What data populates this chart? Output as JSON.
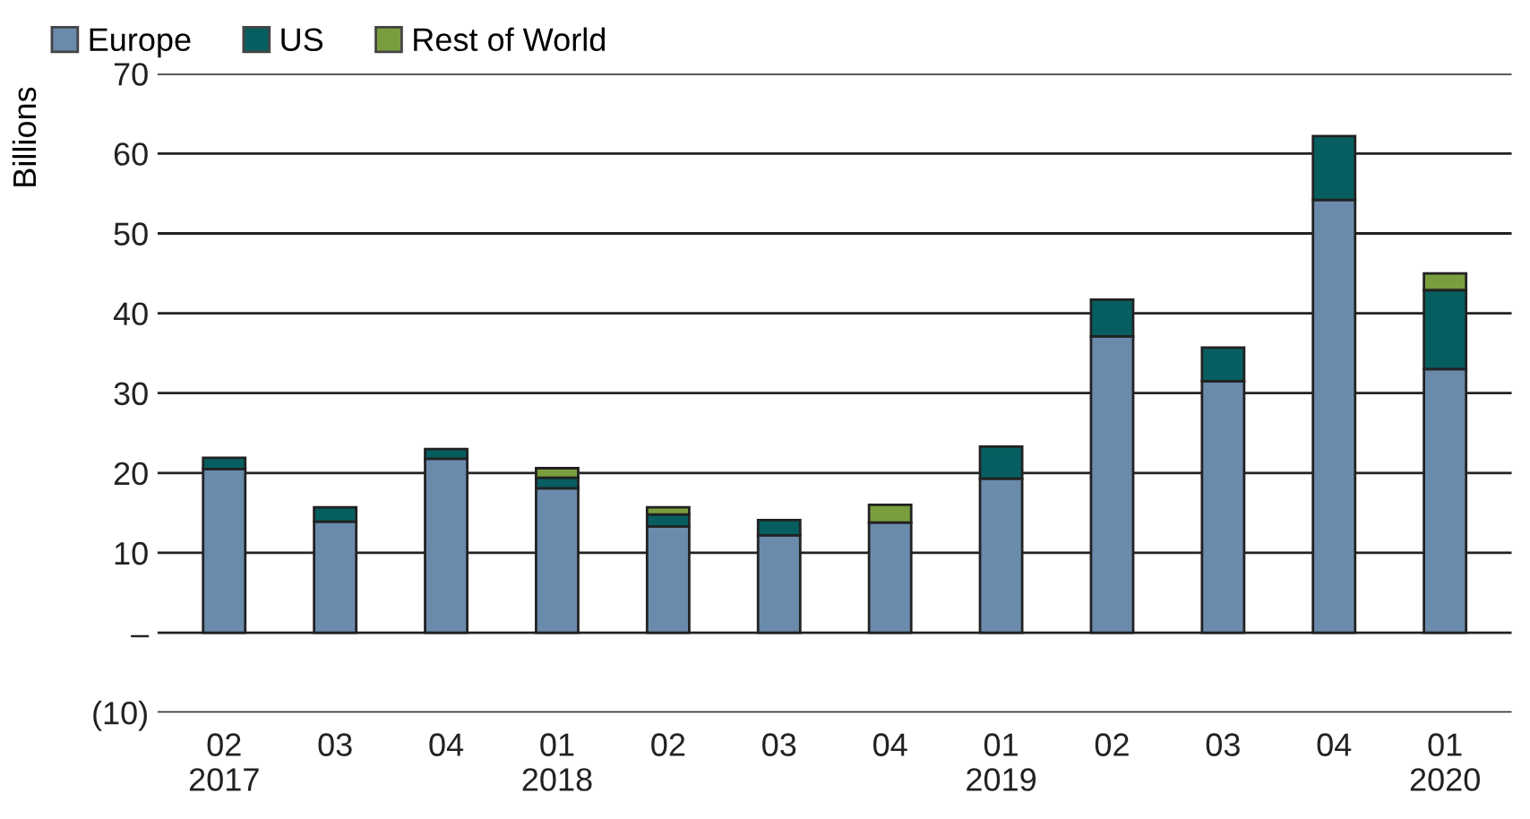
{
  "chart_data": {
    "type": "bar",
    "stacked": true,
    "ylabel": "Billions",
    "categories": [
      "02\n2017",
      "03",
      "04",
      "01\n2018",
      "02",
      "03",
      "04",
      "01\n2019",
      "02",
      "03",
      "04",
      "01\n2020"
    ],
    "series": [
      {
        "name": "Europe",
        "color": "#6a8bab",
        "values": [
          20.5,
          13.9,
          21.8,
          18.1,
          13.3,
          12.2,
          13.8,
          19.3,
          37.1,
          31.5,
          54.2,
          33.0
        ]
      },
      {
        "name": "US",
        "color": "#075e60",
        "values": [
          1.4,
          1.8,
          1.2,
          1.3,
          1.5,
          1.9,
          null,
          4.0,
          4.6,
          4.2,
          8.0,
          9.9
        ]
      },
      {
        "name": "Rest of World",
        "color": "#7a9e3e",
        "values": [
          null,
          null,
          null,
          1.2,
          0.9,
          null,
          2.2,
          null,
          null,
          null,
          null,
          2.1
        ]
      }
    ],
    "ylim": [
      -10,
      70
    ],
    "yticks": [
      {
        "value": -10,
        "label": "(10)"
      },
      {
        "value": 0,
        "label": "–"
      },
      10,
      20,
      30,
      40,
      50,
      60,
      70
    ],
    "grid": "y",
    "legend": "top left"
  }
}
